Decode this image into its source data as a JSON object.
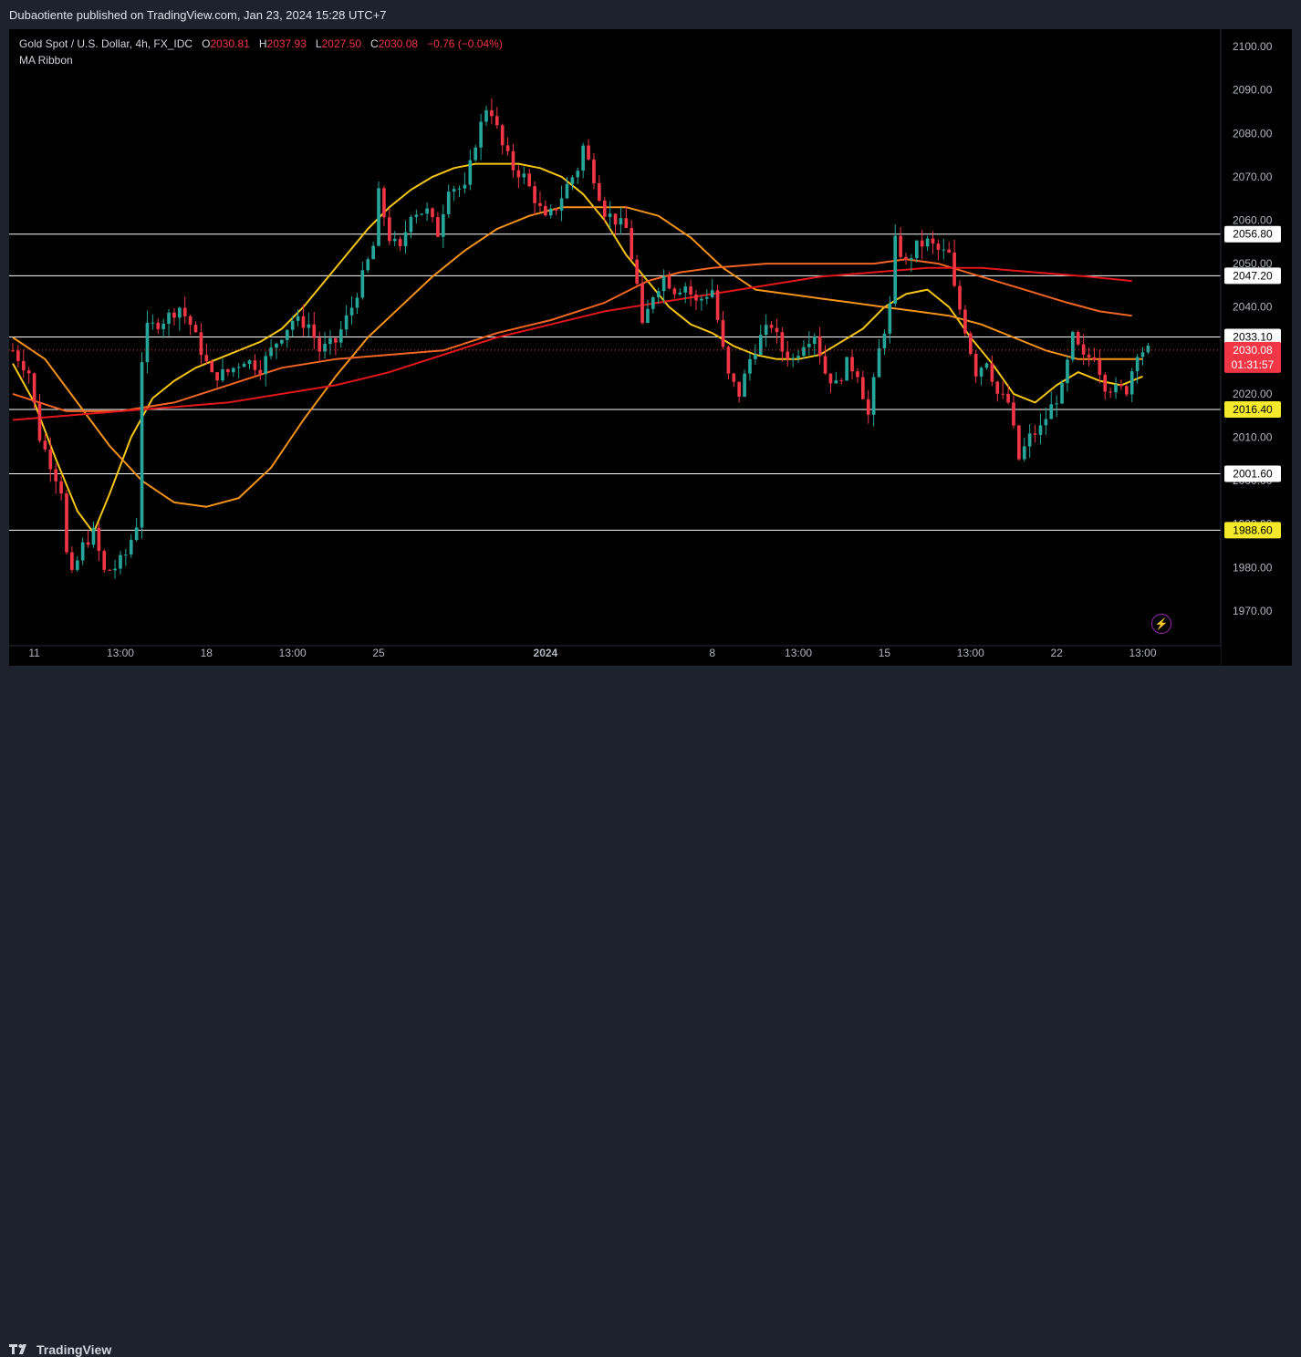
{
  "publisher_line": "Dubaotiente published on TradingView.com, Jan 23, 2024 15:28 UTC+7",
  "brand": "TradingView",
  "legend": {
    "symbol": "Gold Spot / U.S. Dollar, 4h, FX_IDC",
    "o_label": "O",
    "o": "2030.81",
    "h_label": "H",
    "h": "2037.93",
    "l_label": "L",
    "l": "2027.50",
    "c_label": "C",
    "c": "2030.08",
    "change": "−0.76 (−0.04%)",
    "indicator": "MA Ribbon"
  },
  "colors": {
    "up": "#26a69a",
    "down": "#f23645",
    "ma_fast": "#f5c518",
    "ma_mid": "#f7931a",
    "ma_slow1": "#f26522",
    "ma_slow2": "#e0161b",
    "level_line": "#ffffff",
    "price_badge": "#f23645",
    "level_badge": "#f5ea2a"
  },
  "chart_data": {
    "type": "candlestick",
    "title": "Gold Spot / U.S. Dollar, 4h, FX_IDC",
    "ylim": [
      1962,
      2104
    ],
    "y_ticks": [
      1970,
      1980,
      1990,
      2000,
      2010,
      2020,
      2030,
      2040,
      2050,
      2060,
      2070,
      2080,
      2090,
      2100
    ],
    "y_tick_labels": [
      "1970.00",
      "1980.00",
      "1990.00",
      "2000.00",
      "2010.00",
      "2020.00",
      "2030.00",
      "2040.00",
      "2050.00",
      "2060.00",
      "2070.00",
      "2080.00",
      "2090.00",
      "2100.00"
    ],
    "x_ticks": [
      {
        "label": "11",
        "bar": 4,
        "bold": false
      },
      {
        "label": "13:00",
        "bar": 20,
        "bold": false
      },
      {
        "label": "18",
        "bar": 36,
        "bold": false
      },
      {
        "label": "13:00",
        "bar": 52,
        "bold": false
      },
      {
        "label": "25",
        "bar": 68,
        "bold": false
      },
      {
        "label": "2024",
        "bar": 99,
        "bold": true
      },
      {
        "label": "8",
        "bar": 130,
        "bold": false
      },
      {
        "label": "13:00",
        "bar": 146,
        "bold": false
      },
      {
        "label": "15",
        "bar": 162,
        "bold": false
      },
      {
        "label": "13:00",
        "bar": 178,
        "bold": false
      },
      {
        "label": "22",
        "bar": 194,
        "bold": false
      },
      {
        "label": "13:00",
        "bar": 210,
        "bold": false
      }
    ],
    "bar_count": 216,
    "candle_anchors": [
      [
        0,
        2030
      ],
      [
        3,
        2025
      ],
      [
        5,
        2010
      ],
      [
        7,
        2004
      ],
      [
        9,
        1998
      ],
      [
        10,
        1983
      ],
      [
        11,
        1978
      ],
      [
        13,
        1985
      ],
      [
        15,
        1988
      ],
      [
        17,
        1979
      ],
      [
        19,
        1980
      ],
      [
        21,
        1983
      ],
      [
        23,
        1990
      ],
      [
        24,
        2028
      ],
      [
        25,
        2035
      ],
      [
        28,
        2037
      ],
      [
        31,
        2040
      ],
      [
        33,
        2036
      ],
      [
        35,
        2030
      ],
      [
        37,
        2024
      ],
      [
        40,
        2025
      ],
      [
        43,
        2028
      ],
      [
        46,
        2026
      ],
      [
        49,
        2032
      ],
      [
        52,
        2037
      ],
      [
        55,
        2036
      ],
      [
        57,
        2030
      ],
      [
        60,
        2032
      ],
      [
        63,
        2040
      ],
      [
        65,
        2047
      ],
      [
        67,
        2054
      ],
      [
        68,
        2066
      ],
      [
        70,
        2056
      ],
      [
        72,
        2053
      ],
      [
        74,
        2062
      ],
      [
        77,
        2062
      ],
      [
        79,
        2057
      ],
      [
        81,
        2068
      ],
      [
        84,
        2067
      ],
      [
        86,
        2078
      ],
      [
        88,
        2086
      ],
      [
        89,
        2085
      ],
      [
        91,
        2077
      ],
      [
        93,
        2072
      ],
      [
        95,
        2070
      ],
      [
        97,
        2065
      ],
      [
        99,
        2060
      ],
      [
        101,
        2063
      ],
      [
        103,
        2068
      ],
      [
        105,
        2072
      ],
      [
        106,
        2077
      ],
      [
        108,
        2070
      ],
      [
        110,
        2062
      ],
      [
        112,
        2060
      ],
      [
        114,
        2058
      ],
      [
        116,
        2045
      ],
      [
        117,
        2035
      ],
      [
        119,
        2043
      ],
      [
        121,
        2047
      ],
      [
        123,
        2044
      ],
      [
        125,
        2045
      ],
      [
        127,
        2041
      ],
      [
        129,
        2043
      ],
      [
        130,
        2044
      ],
      [
        132,
        2030
      ],
      [
        133,
        2024
      ],
      [
        135,
        2020
      ],
      [
        137,
        2028
      ],
      [
        139,
        2033
      ],
      [
        141,
        2036
      ],
      [
        143,
        2030
      ],
      [
        145,
        2028
      ],
      [
        147,
        2032
      ],
      [
        149,
        2034
      ],
      [
        151,
        2025
      ],
      [
        153,
        2022
      ],
      [
        155,
        2027
      ],
      [
        157,
        2025
      ],
      [
        159,
        2015
      ],
      [
        161,
        2030
      ],
      [
        163,
        2040
      ],
      [
        164,
        2055
      ],
      [
        166,
        2050
      ],
      [
        168,
        2054
      ],
      [
        170,
        2055
      ],
      [
        172,
        2053
      ],
      [
        174,
        2052
      ],
      [
        175,
        2044
      ],
      [
        177,
        2035
      ],
      [
        179,
        2025
      ],
      [
        181,
        2028
      ],
      [
        183,
        2020
      ],
      [
        185,
        2018
      ],
      [
        187,
        2005
      ],
      [
        189,
        2010
      ],
      [
        191,
        2012
      ],
      [
        193,
        2017
      ],
      [
        195,
        2021
      ],
      [
        197,
        2033
      ],
      [
        199,
        2028
      ],
      [
        201,
        2029
      ],
      [
        203,
        2022
      ],
      [
        205,
        2021
      ],
      [
        207,
        2021
      ],
      [
        209,
        2030
      ],
      [
        211,
        2030
      ]
    ],
    "ma_ribbon": [
      {
        "name": "",
        "color": "#f5c518",
        "points": [
          [
            0,
            2027
          ],
          [
            4,
            2018
          ],
          [
            8,
            2005
          ],
          [
            12,
            1993
          ],
          [
            15,
            1988
          ],
          [
            18,
            1997
          ],
          [
            22,
            2010
          ],
          [
            26,
            2019
          ],
          [
            30,
            2023
          ],
          [
            34,
            2026
          ],
          [
            38,
            2028
          ],
          [
            42,
            2030
          ],
          [
            46,
            2032
          ],
          [
            50,
            2035
          ],
          [
            54,
            2040
          ],
          [
            58,
            2046
          ],
          [
            62,
            2052
          ],
          [
            66,
            2058
          ],
          [
            70,
            2063
          ],
          [
            74,
            2067
          ],
          [
            78,
            2070
          ],
          [
            82,
            2072
          ],
          [
            86,
            2073
          ],
          [
            90,
            2073
          ],
          [
            94,
            2073
          ],
          [
            98,
            2072
          ],
          [
            102,
            2070
          ],
          [
            106,
            2066
          ],
          [
            110,
            2060
          ],
          [
            114,
            2052
          ],
          [
            118,
            2046
          ],
          [
            122,
            2040
          ],
          [
            126,
            2036
          ],
          [
            130,
            2034
          ],
          [
            134,
            2031
          ],
          [
            138,
            2029
          ],
          [
            142,
            2028
          ],
          [
            146,
            2028
          ],
          [
            150,
            2029
          ],
          [
            154,
            2032
          ],
          [
            158,
            2035
          ],
          [
            162,
            2040
          ],
          [
            166,
            2043
          ],
          [
            170,
            2044
          ],
          [
            174,
            2040
          ],
          [
            178,
            2033
          ],
          [
            182,
            2027
          ],
          [
            186,
            2020
          ],
          [
            190,
            2018
          ],
          [
            194,
            2022
          ],
          [
            198,
            2025
          ],
          [
            202,
            2023
          ],
          [
            206,
            2022
          ],
          [
            210,
            2024
          ]
        ]
      },
      {
        "name": "",
        "color": "#f7931a",
        "points": [
          [
            0,
            2033
          ],
          [
            6,
            2028
          ],
          [
            12,
            2018
          ],
          [
            18,
            2008
          ],
          [
            24,
            2000
          ],
          [
            30,
            1995
          ],
          [
            36,
            1994
          ],
          [
            42,
            1996
          ],
          [
            48,
            2003
          ],
          [
            54,
            2014
          ],
          [
            60,
            2024
          ],
          [
            66,
            2033
          ],
          [
            72,
            2040
          ],
          [
            78,
            2047
          ],
          [
            84,
            2053
          ],
          [
            90,
            2058
          ],
          [
            96,
            2061
          ],
          [
            102,
            2063
          ],
          [
            108,
            2063
          ],
          [
            114,
            2063
          ],
          [
            120,
            2061
          ],
          [
            126,
            2056
          ],
          [
            132,
            2049
          ],
          [
            138,
            2044
          ],
          [
            144,
            2043
          ],
          [
            150,
            2042
          ],
          [
            156,
            2041
          ],
          [
            162,
            2040
          ],
          [
            168,
            2039
          ],
          [
            174,
            2038
          ],
          [
            180,
            2036
          ],
          [
            186,
            2033
          ],
          [
            192,
            2030
          ],
          [
            198,
            2028
          ],
          [
            204,
            2028
          ],
          [
            210,
            2028
          ]
        ]
      },
      {
        "name": "",
        "color": "#f26522",
        "points": [
          [
            0,
            2020
          ],
          [
            10,
            2016
          ],
          [
            20,
            2016
          ],
          [
            30,
            2018
          ],
          [
            40,
            2022
          ],
          [
            50,
            2026
          ],
          [
            60,
            2028
          ],
          [
            70,
            2029
          ],
          [
            80,
            2030
          ],
          [
            90,
            2034
          ],
          [
            100,
            2037
          ],
          [
            110,
            2041
          ],
          [
            118,
            2046
          ],
          [
            124,
            2048
          ],
          [
            130,
            2049
          ],
          [
            140,
            2050
          ],
          [
            150,
            2050
          ],
          [
            160,
            2050
          ],
          [
            166,
            2051
          ],
          [
            172,
            2050
          ],
          [
            180,
            2047
          ],
          [
            188,
            2044
          ],
          [
            196,
            2041
          ],
          [
            202,
            2039
          ],
          [
            208,
            2038
          ]
        ]
      },
      {
        "name": "",
        "color": "#e0161b",
        "points": [
          [
            0,
            2014
          ],
          [
            10,
            2015
          ],
          [
            20,
            2016
          ],
          [
            30,
            2017
          ],
          [
            40,
            2018
          ],
          [
            50,
            2020
          ],
          [
            60,
            2022
          ],
          [
            70,
            2025
          ],
          [
            80,
            2029
          ],
          [
            90,
            2033
          ],
          [
            100,
            2036
          ],
          [
            110,
            2039
          ],
          [
            120,
            2041
          ],
          [
            130,
            2043
          ],
          [
            140,
            2045
          ],
          [
            150,
            2047
          ],
          [
            160,
            2048
          ],
          [
            170,
            2049
          ],
          [
            180,
            2049
          ],
          [
            190,
            2048
          ],
          [
            200,
            2047
          ],
          [
            208,
            2046
          ]
        ]
      }
    ],
    "horizontal_levels": [
      {
        "value": 2056.8,
        "label": "2056.80",
        "badge": "white"
      },
      {
        "value": 2047.2,
        "label": "2047.20",
        "badge": "white"
      },
      {
        "value": 2033.1,
        "label": "2033.10",
        "badge": "white"
      },
      {
        "value": 2016.4,
        "label": "2016.40",
        "badge": "yellow"
      },
      {
        "value": 2001.6,
        "label": "2001.60",
        "badge": "white"
      },
      {
        "value": 1988.6,
        "label": "1988.60",
        "badge": "yellow"
      }
    ],
    "last_price": {
      "value": 2030.08,
      "label": "2030.08",
      "countdown": "01:31:57"
    }
  }
}
